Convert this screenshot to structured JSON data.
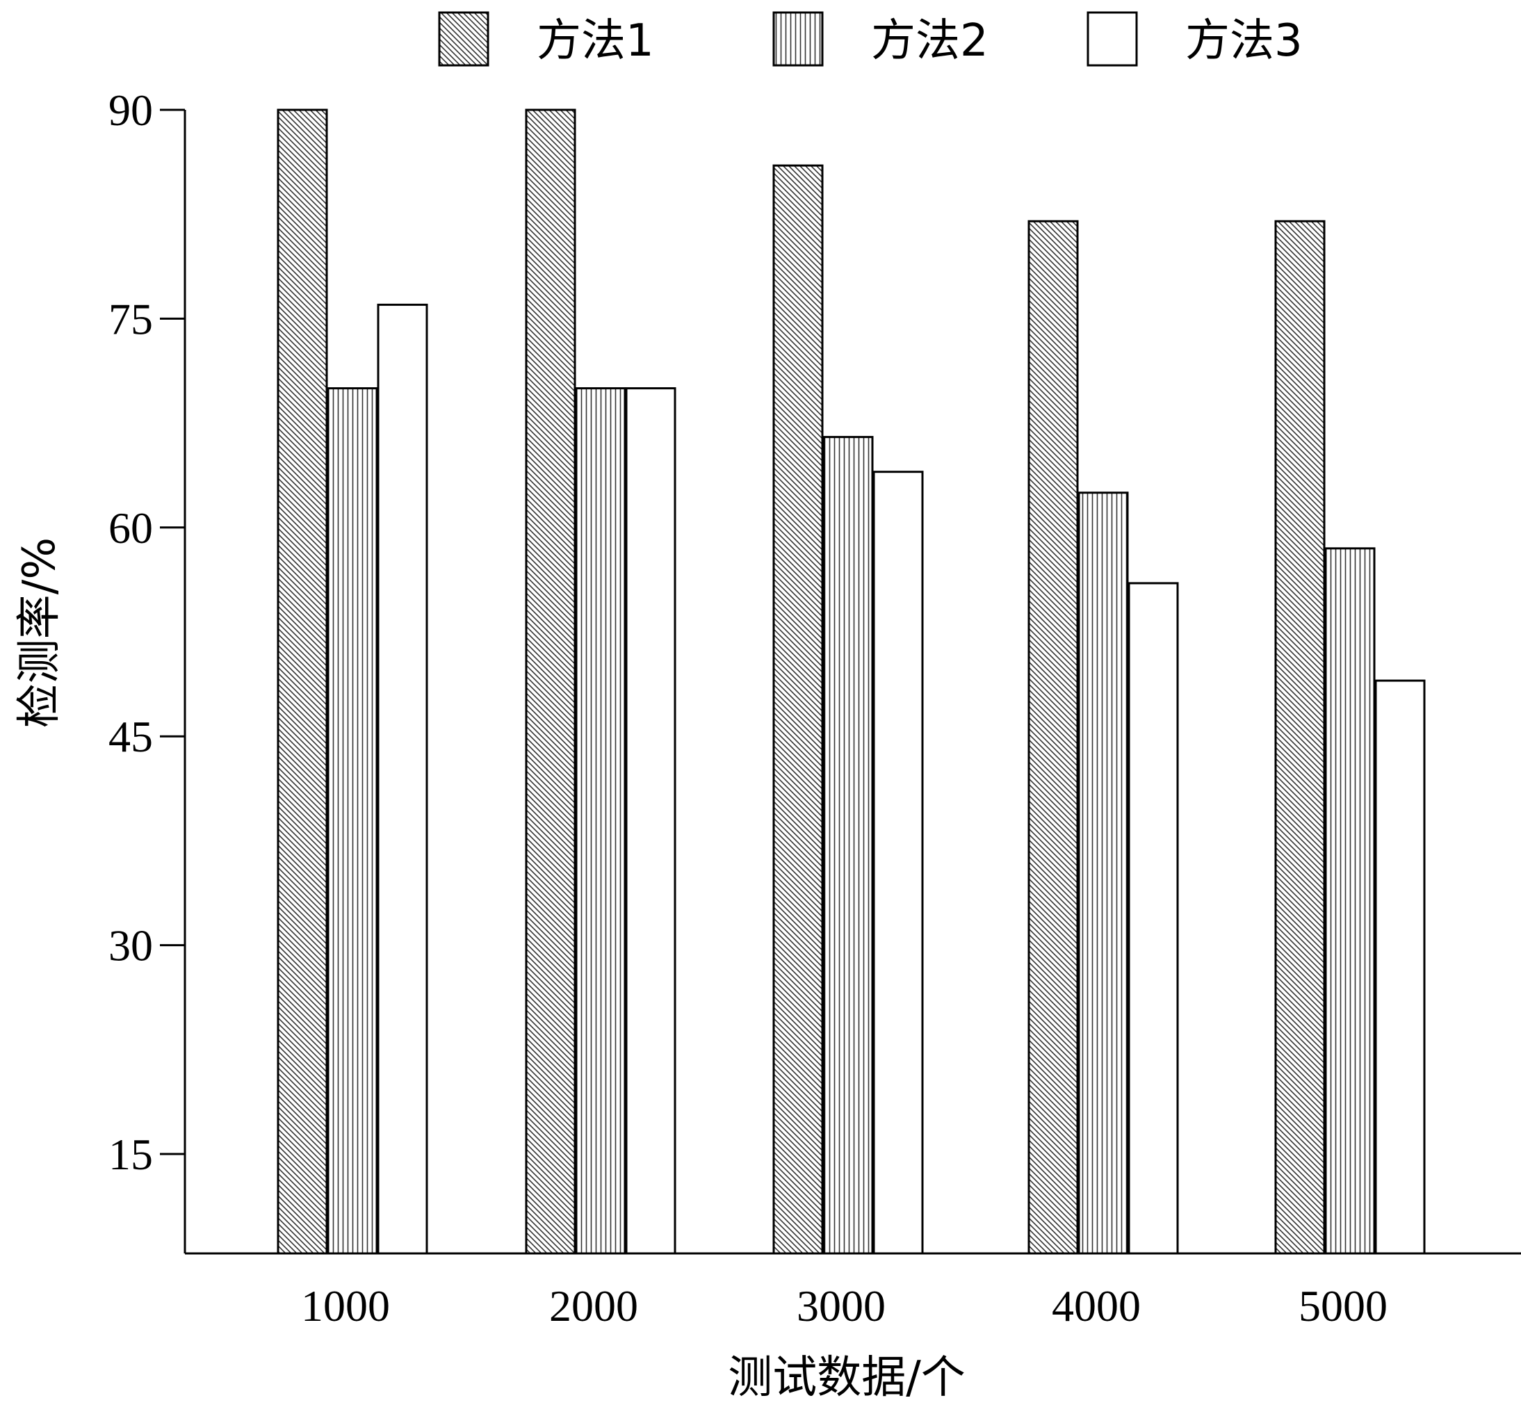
{
  "chart_data": {
    "type": "bar",
    "categories": [
      "1000",
      "2000",
      "3000",
      "4000",
      "5000"
    ],
    "series": [
      {
        "name": "方法1",
        "values": [
          90,
          90,
          86,
          82,
          82
        ],
        "pattern": "diagonal"
      },
      {
        "name": "方法2",
        "values": [
          70,
          70,
          66.5,
          62.5,
          58.5
        ],
        "pattern": "vertical"
      },
      {
        "name": "方法3",
        "values": [
          76,
          70,
          64,
          56,
          49
        ],
        "pattern": "none"
      }
    ],
    "xlabel": "测试数据/个",
    "ylabel": "检测率/%",
    "yticks": [
      15,
      30,
      45,
      60,
      75,
      90
    ],
    "ylim": [
      8,
      90
    ],
    "grid": false,
    "legend_position": "top"
  }
}
